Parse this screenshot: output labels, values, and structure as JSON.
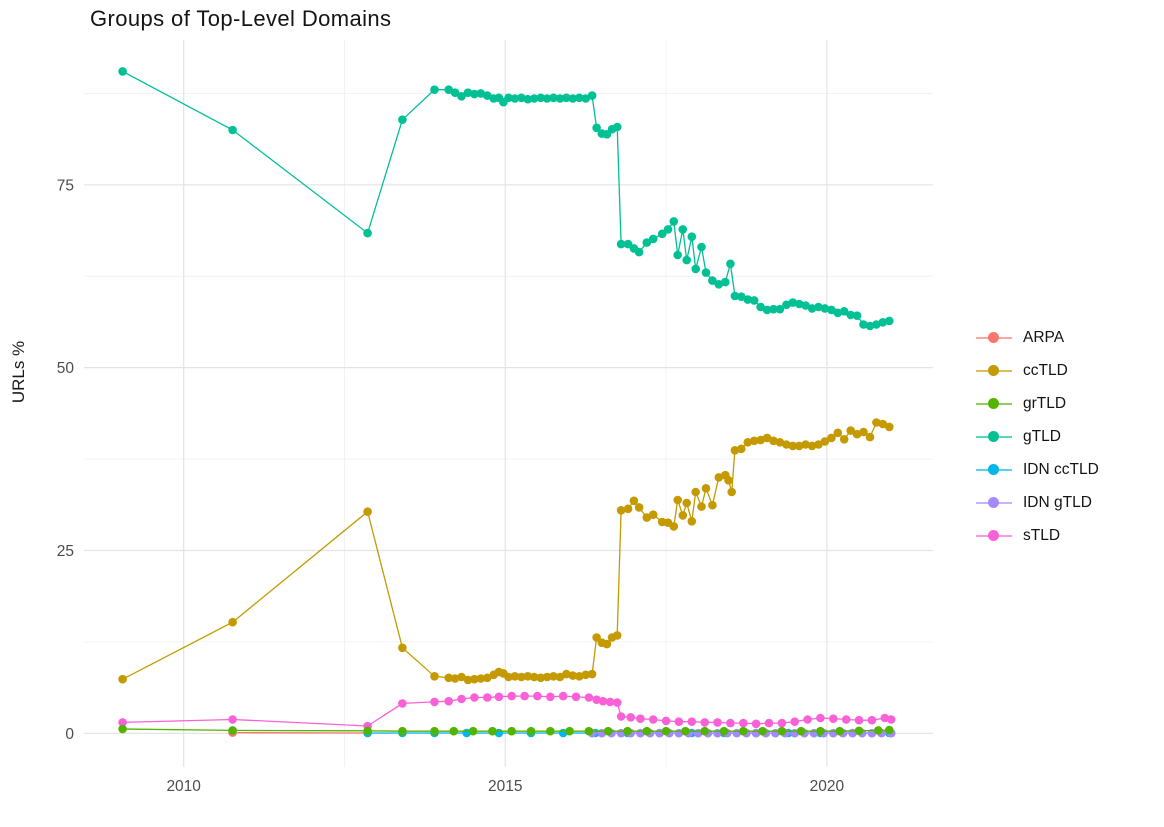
{
  "title": "Groups of Top-Level Domains",
  "chart_data": {
    "type": "line",
    "title": "Groups of Top-Level Domains",
    "xlabel": "",
    "ylabel": "URLs %",
    "x_ticks": [
      2010,
      2015,
      2020
    ],
    "x_minor_ticks": [
      2012.5,
      2017.5
    ],
    "y_ticks": [
      0,
      25,
      50,
      75
    ],
    "y_minor_ticks": [
      12.5,
      37.5,
      62.5,
      87.5
    ],
    "xlim": [
      2008.45,
      2021.65
    ],
    "ylim": [
      -4.6,
      94.8
    ],
    "grid": "major+minor",
    "legend_position": "right",
    "background": "#ffffff",
    "grid_major_color": "#e4e4e4",
    "grid_minor_color": "#f0f0f0",
    "series": [
      {
        "name": "ARPA",
        "color": "#F8766D",
        "z": 0,
        "points": [
          [
            2010.76,
            0.1
          ],
          [
            2012.86,
            0.05
          ]
        ]
      },
      {
        "name": "ccTLD",
        "color": "#C49A00",
        "z": 4,
        "points": [
          [
            2009.05,
            7.4
          ],
          [
            2010.76,
            15.2
          ],
          [
            2012.86,
            30.3
          ],
          [
            2013.4,
            11.7
          ],
          [
            2013.9,
            7.8
          ],
          [
            2014.12,
            7.6
          ],
          [
            2014.22,
            7.5
          ],
          [
            2014.32,
            7.7
          ],
          [
            2014.42,
            7.3
          ],
          [
            2014.52,
            7.4
          ],
          [
            2014.62,
            7.5
          ],
          [
            2014.72,
            7.6
          ],
          [
            2014.82,
            8.0
          ],
          [
            2014.9,
            8.4
          ],
          [
            2014.97,
            8.2
          ],
          [
            2015.05,
            7.7
          ],
          [
            2015.15,
            7.8
          ],
          [
            2015.25,
            7.7
          ],
          [
            2015.35,
            7.8
          ],
          [
            2015.45,
            7.7
          ],
          [
            2015.55,
            7.6
          ],
          [
            2015.65,
            7.7
          ],
          [
            2015.75,
            7.8
          ],
          [
            2015.85,
            7.7
          ],
          [
            2015.95,
            8.1
          ],
          [
            2016.05,
            7.9
          ],
          [
            2016.15,
            7.8
          ],
          [
            2016.25,
            8.0
          ],
          [
            2016.35,
            8.1
          ],
          [
            2016.42,
            13.1
          ],
          [
            2016.5,
            12.4
          ],
          [
            2016.58,
            12.2
          ],
          [
            2016.66,
            13.1
          ],
          [
            2016.74,
            13.4
          ],
          [
            2016.8,
            30.5
          ],
          [
            2016.91,
            30.7
          ],
          [
            2017.0,
            31.8
          ],
          [
            2017.08,
            30.9
          ],
          [
            2017.2,
            29.5
          ],
          [
            2017.3,
            29.9
          ],
          [
            2017.44,
            28.9
          ],
          [
            2017.53,
            28.8
          ],
          [
            2017.62,
            28.3
          ],
          [
            2017.68,
            31.9
          ],
          [
            2017.76,
            29.8
          ],
          [
            2017.82,
            31.5
          ],
          [
            2017.9,
            29.0
          ],
          [
            2017.96,
            33.0
          ],
          [
            2018.05,
            31.0
          ],
          [
            2018.12,
            33.5
          ],
          [
            2018.22,
            31.2
          ],
          [
            2018.32,
            35.0
          ],
          [
            2018.42,
            35.3
          ],
          [
            2018.47,
            34.6
          ],
          [
            2018.52,
            33.0
          ],
          [
            2018.57,
            38.7
          ],
          [
            2018.67,
            38.9
          ],
          [
            2018.77,
            39.8
          ],
          [
            2018.87,
            40.0
          ],
          [
            2018.97,
            40.1
          ],
          [
            2019.07,
            40.4
          ],
          [
            2019.17,
            40.0
          ],
          [
            2019.27,
            39.8
          ],
          [
            2019.37,
            39.5
          ],
          [
            2019.47,
            39.3
          ],
          [
            2019.57,
            39.3
          ],
          [
            2019.67,
            39.5
          ],
          [
            2019.77,
            39.3
          ],
          [
            2019.87,
            39.5
          ],
          [
            2019.97,
            39.9
          ],
          [
            2020.07,
            40.4
          ],
          [
            2020.17,
            41.1
          ],
          [
            2020.27,
            40.2
          ],
          [
            2020.37,
            41.4
          ],
          [
            2020.47,
            40.9
          ],
          [
            2020.57,
            41.2
          ],
          [
            2020.67,
            40.5
          ],
          [
            2020.77,
            42.5
          ],
          [
            2020.87,
            42.3
          ],
          [
            2020.97,
            41.9
          ]
        ]
      },
      {
        "name": "grTLD",
        "color": "#53B400",
        "z": 6,
        "points": [
          [
            2009.05,
            0.6
          ],
          [
            2010.76,
            0.4
          ],
          [
            2012.86,
            0.35
          ],
          [
            2013.4,
            0.3
          ],
          [
            2013.9,
            0.3
          ],
          [
            2014.2,
            0.3
          ],
          [
            2014.5,
            0.3
          ],
          [
            2014.8,
            0.3
          ],
          [
            2015.1,
            0.3
          ],
          [
            2015.4,
            0.3
          ],
          [
            2015.7,
            0.3
          ],
          [
            2016.0,
            0.3
          ],
          [
            2016.3,
            0.3
          ],
          [
            2016.6,
            0.3
          ],
          [
            2016.9,
            0.3
          ],
          [
            2017.2,
            0.3
          ],
          [
            2017.5,
            0.3
          ],
          [
            2017.8,
            0.3
          ],
          [
            2018.1,
            0.3
          ],
          [
            2018.4,
            0.3
          ],
          [
            2018.7,
            0.3
          ],
          [
            2019.0,
            0.3
          ],
          [
            2019.3,
            0.3
          ],
          [
            2019.6,
            0.3
          ],
          [
            2019.9,
            0.3
          ],
          [
            2020.2,
            0.3
          ],
          [
            2020.5,
            0.35
          ],
          [
            2020.8,
            0.4
          ],
          [
            2020.97,
            0.45
          ]
        ]
      },
      {
        "name": "gTLD",
        "color": "#00C094",
        "z": 5,
        "points": [
          [
            2009.05,
            90.5
          ],
          [
            2010.76,
            82.5
          ],
          [
            2012.86,
            68.4
          ],
          [
            2013.4,
            83.9
          ],
          [
            2013.9,
            88.0
          ],
          [
            2014.12,
            88.0
          ],
          [
            2014.22,
            87.6
          ],
          [
            2014.32,
            87.1
          ],
          [
            2014.42,
            87.6
          ],
          [
            2014.52,
            87.4
          ],
          [
            2014.62,
            87.5
          ],
          [
            2014.72,
            87.2
          ],
          [
            2014.82,
            86.8
          ],
          [
            2014.9,
            86.9
          ],
          [
            2014.97,
            86.3
          ],
          [
            2015.05,
            86.9
          ],
          [
            2015.15,
            86.8
          ],
          [
            2015.25,
            86.9
          ],
          [
            2015.35,
            86.7
          ],
          [
            2015.45,
            86.8
          ],
          [
            2015.55,
            86.9
          ],
          [
            2015.65,
            86.8
          ],
          [
            2015.75,
            86.9
          ],
          [
            2015.85,
            86.8
          ],
          [
            2015.95,
            86.9
          ],
          [
            2016.05,
            86.8
          ],
          [
            2016.15,
            86.9
          ],
          [
            2016.25,
            86.8
          ],
          [
            2016.35,
            87.2
          ],
          [
            2016.42,
            82.8
          ],
          [
            2016.5,
            82.0
          ],
          [
            2016.58,
            81.9
          ],
          [
            2016.66,
            82.6
          ],
          [
            2016.74,
            82.9
          ],
          [
            2016.8,
            66.9
          ],
          [
            2016.91,
            66.9
          ],
          [
            2017.0,
            66.3
          ],
          [
            2017.08,
            65.8
          ],
          [
            2017.2,
            67.1
          ],
          [
            2017.3,
            67.6
          ],
          [
            2017.44,
            68.3
          ],
          [
            2017.53,
            68.9
          ],
          [
            2017.62,
            70.0
          ],
          [
            2017.68,
            65.4
          ],
          [
            2017.76,
            68.9
          ],
          [
            2017.82,
            64.7
          ],
          [
            2017.9,
            67.9
          ],
          [
            2017.96,
            63.5
          ],
          [
            2018.05,
            66.5
          ],
          [
            2018.12,
            63.0
          ],
          [
            2018.22,
            61.9
          ],
          [
            2018.32,
            61.4
          ],
          [
            2018.42,
            61.7
          ],
          [
            2018.5,
            64.2
          ],
          [
            2018.57,
            59.8
          ],
          [
            2018.67,
            59.7
          ],
          [
            2018.77,
            59.3
          ],
          [
            2018.87,
            59.2
          ],
          [
            2018.97,
            58.3
          ],
          [
            2019.07,
            57.9
          ],
          [
            2019.17,
            58.0
          ],
          [
            2019.27,
            58.0
          ],
          [
            2019.37,
            58.6
          ],
          [
            2019.47,
            58.9
          ],
          [
            2019.57,
            58.7
          ],
          [
            2019.67,
            58.5
          ],
          [
            2019.77,
            58.1
          ],
          [
            2019.87,
            58.3
          ],
          [
            2019.97,
            58.1
          ],
          [
            2020.07,
            57.9
          ],
          [
            2020.17,
            57.5
          ],
          [
            2020.27,
            57.7
          ],
          [
            2020.37,
            57.2
          ],
          [
            2020.47,
            57.1
          ],
          [
            2020.57,
            55.9
          ],
          [
            2020.67,
            55.7
          ],
          [
            2020.77,
            55.9
          ],
          [
            2020.87,
            56.2
          ],
          [
            2020.97,
            56.4
          ]
        ]
      },
      {
        "name": "IDN ccTLD",
        "color": "#00B6EB",
        "z": 1,
        "points": [
          [
            2012.86,
            0.05
          ],
          [
            2013.4,
            0.05
          ],
          [
            2013.9,
            0.05
          ],
          [
            2014.4,
            0.05
          ],
          [
            2014.9,
            0.05
          ],
          [
            2015.4,
            0.05
          ],
          [
            2015.9,
            0.05
          ],
          [
            2016.4,
            0.05
          ],
          [
            2016.9,
            0.05
          ],
          [
            2017.4,
            0.05
          ],
          [
            2017.9,
            0.05
          ],
          [
            2018.4,
            0.05
          ],
          [
            2018.9,
            0.05
          ],
          [
            2019.4,
            0.05
          ],
          [
            2019.9,
            0.05
          ],
          [
            2020.4,
            0.05
          ],
          [
            2020.97,
            0.05
          ]
        ]
      },
      {
        "name": "IDN gTLD",
        "color": "#A58AFF",
        "z": 2,
        "points": [
          [
            2016.35,
            0.02
          ],
          [
            2016.5,
            0.02
          ],
          [
            2016.65,
            0.02
          ],
          [
            2016.8,
            0.02
          ],
          [
            2016.95,
            0.02
          ],
          [
            2017.1,
            0.02
          ],
          [
            2017.25,
            0.02
          ],
          [
            2017.4,
            0.02
          ],
          [
            2017.55,
            0.02
          ],
          [
            2017.7,
            0.02
          ],
          [
            2017.85,
            0.02
          ],
          [
            2018.0,
            0.02
          ],
          [
            2018.15,
            0.02
          ],
          [
            2018.3,
            0.02
          ],
          [
            2018.45,
            0.02
          ],
          [
            2018.6,
            0.02
          ],
          [
            2018.75,
            0.02
          ],
          [
            2018.9,
            0.02
          ],
          [
            2019.05,
            0.02
          ],
          [
            2019.2,
            0.02
          ],
          [
            2019.35,
            0.02
          ],
          [
            2019.5,
            0.02
          ],
          [
            2019.65,
            0.02
          ],
          [
            2019.8,
            0.02
          ],
          [
            2019.95,
            0.02
          ],
          [
            2020.1,
            0.02
          ],
          [
            2020.25,
            0.02
          ],
          [
            2020.4,
            0.02
          ],
          [
            2020.55,
            0.02
          ],
          [
            2020.7,
            0.02
          ],
          [
            2020.85,
            0.02
          ],
          [
            2021.0,
            0.02
          ]
        ]
      },
      {
        "name": "sTLD",
        "color": "#FB61D7",
        "z": 3,
        "points": [
          [
            2009.05,
            1.5
          ],
          [
            2010.76,
            1.9
          ],
          [
            2012.86,
            1.0
          ],
          [
            2013.4,
            4.1
          ],
          [
            2013.9,
            4.3
          ],
          [
            2014.12,
            4.4
          ],
          [
            2014.32,
            4.7
          ],
          [
            2014.52,
            4.9
          ],
          [
            2014.72,
            4.9
          ],
          [
            2014.9,
            5.0
          ],
          [
            2015.1,
            5.1
          ],
          [
            2015.3,
            5.1
          ],
          [
            2015.5,
            5.1
          ],
          [
            2015.7,
            5.0
          ],
          [
            2015.9,
            5.1
          ],
          [
            2016.1,
            5.0
          ],
          [
            2016.3,
            4.9
          ],
          [
            2016.42,
            4.6
          ],
          [
            2016.52,
            4.4
          ],
          [
            2016.63,
            4.3
          ],
          [
            2016.74,
            4.2
          ],
          [
            2016.8,
            2.3
          ],
          [
            2016.95,
            2.2
          ],
          [
            2017.1,
            2.0
          ],
          [
            2017.3,
            1.9
          ],
          [
            2017.5,
            1.7
          ],
          [
            2017.7,
            1.6
          ],
          [
            2017.9,
            1.6
          ],
          [
            2018.1,
            1.5
          ],
          [
            2018.3,
            1.5
          ],
          [
            2018.5,
            1.4
          ],
          [
            2018.7,
            1.4
          ],
          [
            2018.9,
            1.3
          ],
          [
            2019.1,
            1.4
          ],
          [
            2019.3,
            1.4
          ],
          [
            2019.5,
            1.6
          ],
          [
            2019.7,
            1.9
          ],
          [
            2019.9,
            2.1
          ],
          [
            2020.1,
            2.0
          ],
          [
            2020.3,
            1.9
          ],
          [
            2020.5,
            1.8
          ],
          [
            2020.7,
            1.8
          ],
          [
            2020.9,
            2.1
          ],
          [
            2021.0,
            1.9
          ]
        ]
      }
    ]
  }
}
